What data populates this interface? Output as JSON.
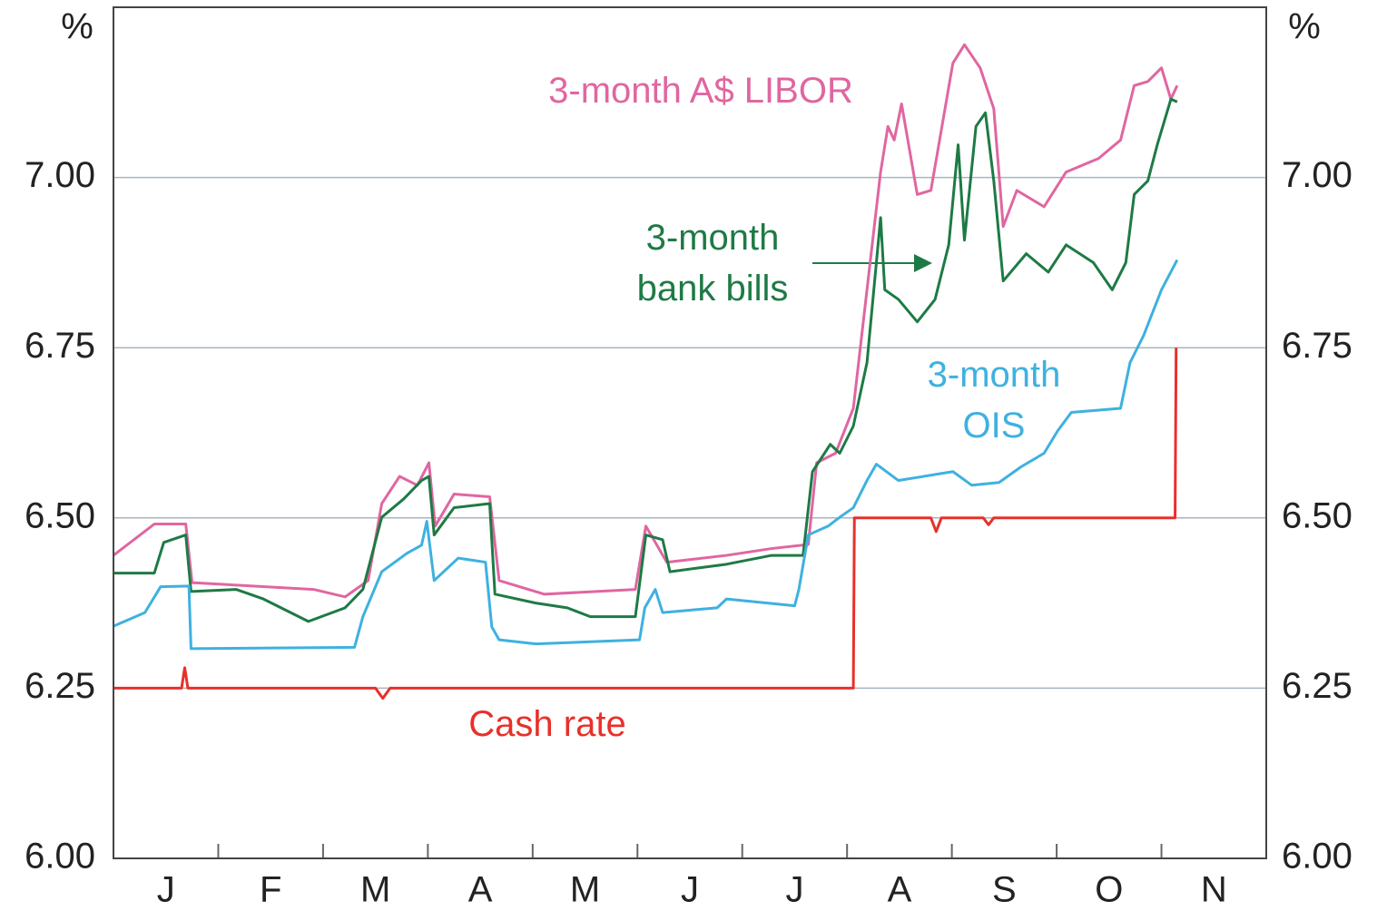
{
  "chart_data": {
    "type": "line",
    "y_unit": "%",
    "categories": [
      "J",
      "F",
      "M",
      "A",
      "M",
      "J",
      "J",
      "A",
      "S",
      "O",
      "N"
    ],
    "xlim": [
      0,
      11
    ],
    "ylim": [
      6,
      7.25
    ],
    "yticks": [
      {
        "value": 6,
        "label": "6.00"
      },
      {
        "value": 6.25,
        "label": "6.25"
      },
      {
        "value": 6.5,
        "label": "6.50"
      },
      {
        "value": 6.75,
        "label": "6.75"
      },
      {
        "value": 7,
        "label": "7.00"
      }
    ],
    "grid": true,
    "series": [
      {
        "name": "3-month A$ LIBOR",
        "color": "#e066a0",
        "x": [
          0,
          0.39,
          0.69,
          0.75,
          1.91,
          2.21,
          2.43,
          2.56,
          2.73,
          2.9,
          3.01,
          3.07,
          3.25,
          3.59,
          3.68,
          4.11,
          4.98,
          5.08,
          5.28,
          5.85,
          6.28,
          6.63,
          6.71,
          6.89,
          7.06,
          7.19,
          7.32,
          7.39,
          7.45,
          7.52,
          7.67,
          7.8,
          8.01,
          8.12,
          8.27,
          8.4,
          8.49,
          8.62,
          8.88,
          9.09,
          9.4,
          9.61,
          9.74,
          9.87,
          10.0,
          10.09,
          10.15
        ],
        "values": [
          6.445,
          6.491,
          6.491,
          6.405,
          6.395,
          6.384,
          6.408,
          6.521,
          6.561,
          6.548,
          6.581,
          6.488,
          6.535,
          6.531,
          6.408,
          6.388,
          6.395,
          6.488,
          6.435,
          6.445,
          6.455,
          6.461,
          6.581,
          6.595,
          6.661,
          6.835,
          7.008,
          7.075,
          7.055,
          7.108,
          6.975,
          6.981,
          7.168,
          7.195,
          7.161,
          7.101,
          6.928,
          6.981,
          6.957,
          7.008,
          7.028,
          7.055,
          7.135,
          7.141,
          7.161,
          7.115,
          7.135
        ]
      },
      {
        "name": "3-month bank bills",
        "color": "#1e7a45",
        "x": [
          0,
          0.39,
          0.48,
          0.69,
          0.74,
          1.17,
          1.43,
          1.86,
          2.21,
          2.38,
          2.56,
          2.77,
          2.94,
          3.01,
          3.06,
          3.25,
          3.59,
          3.64,
          4.03,
          4.33,
          4.55,
          4.98,
          5.08,
          5.24,
          5.31,
          5.85,
          6.28,
          6.58,
          6.67,
          6.84,
          6.93,
          7.06,
          7.19,
          7.32,
          7.36,
          7.49,
          7.67,
          7.84,
          7.97,
          8.06,
          8.12,
          8.23,
          8.32,
          8.4,
          8.49,
          8.71,
          8.92,
          9.09,
          9.35,
          9.53,
          9.66,
          9.74,
          9.87,
          9.96,
          10.09,
          10.15
        ],
        "values": [
          6.419,
          6.419,
          6.464,
          6.475,
          6.392,
          6.395,
          6.381,
          6.348,
          6.368,
          6.395,
          6.501,
          6.528,
          6.555,
          6.561,
          6.475,
          6.515,
          6.521,
          6.388,
          6.375,
          6.368,
          6.355,
          6.355,
          6.475,
          6.468,
          6.421,
          6.432,
          6.445,
          6.445,
          6.568,
          6.608,
          6.595,
          6.635,
          6.728,
          6.941,
          6.835,
          6.821,
          6.788,
          6.821,
          6.901,
          7.048,
          6.908,
          7.075,
          7.095,
          6.995,
          6.848,
          6.888,
          6.861,
          6.901,
          6.875,
          6.835,
          6.875,
          6.975,
          6.995,
          7.048,
          7.115,
          7.111
        ]
      },
      {
        "name": "3-month OIS",
        "color": "#3eb1e0",
        "x": [
          0,
          0.3,
          0.45,
          0.72,
          0.74,
          2.3,
          2.38,
          2.56,
          2.8,
          2.94,
          2.99,
          3.06,
          3.29,
          3.55,
          3.61,
          3.68,
          4.03,
          5.02,
          5.07,
          5.17,
          5.24,
          5.76,
          5.85,
          6.5,
          6.54,
          6.63,
          6.82,
          6.93,
          7.06,
          7.19,
          7.28,
          7.49,
          8.01,
          8.19,
          8.45,
          8.66,
          8.88,
          9.01,
          9.14,
          9.61,
          9.7,
          9.83,
          10.0,
          10.15
        ],
        "values": [
          6.341,
          6.361,
          6.399,
          6.4,
          6.308,
          6.31,
          6.355,
          6.421,
          6.448,
          6.46,
          6.495,
          6.408,
          6.441,
          6.435,
          6.34,
          6.321,
          6.315,
          6.321,
          6.368,
          6.395,
          6.361,
          6.368,
          6.381,
          6.371,
          6.395,
          6.475,
          6.488,
          6.501,
          6.515,
          6.555,
          6.579,
          6.555,
          6.568,
          6.548,
          6.552,
          6.575,
          6.595,
          6.628,
          6.655,
          6.661,
          6.728,
          6.768,
          6.835,
          6.879
        ]
      },
      {
        "name": "Cash rate",
        "color": "#e8302a",
        "x": [
          0,
          0.65,
          0.68,
          0.71,
          2.5,
          2.57,
          2.64,
          7.06,
          7.07,
          7.8,
          7.85,
          7.9,
          8.3,
          8.35,
          8.4,
          10.13,
          10.14
        ],
        "values": [
          6.25,
          6.25,
          6.28,
          6.25,
          6.25,
          6.235,
          6.25,
          6.25,
          6.5,
          6.5,
          6.48,
          6.5,
          6.5,
          6.49,
          6.5,
          6.5,
          6.75
        ]
      }
    ]
  }
}
